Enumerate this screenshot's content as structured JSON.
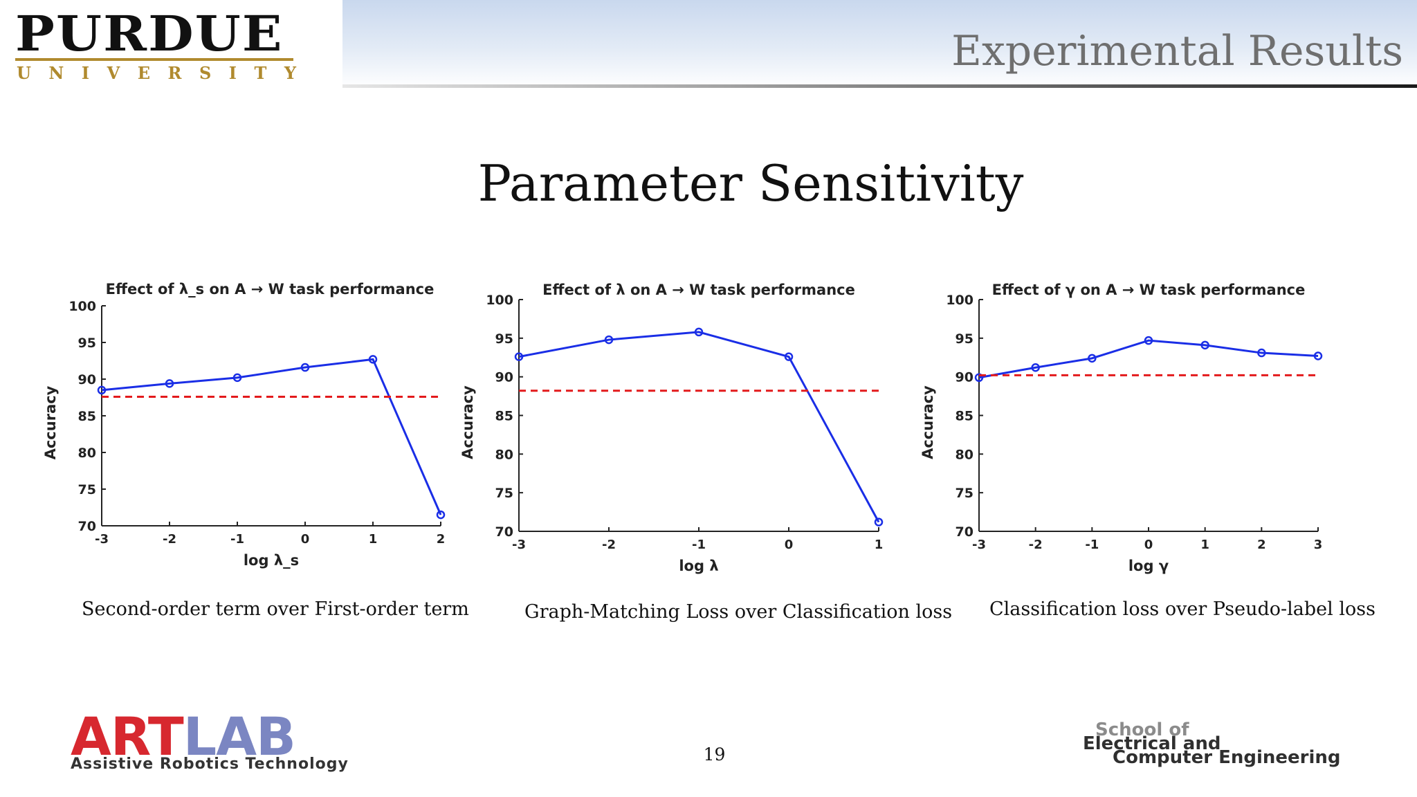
{
  "header": {
    "logo_name": "PURDUE",
    "logo_sub": "UNIVERSITY",
    "section_title": "Experimental Results"
  },
  "slide_title": "Parameter Sensitivity",
  "chart_data": [
    {
      "type": "line",
      "title": "Effect of λ_s on A → W task performance",
      "xlabel": "log λ_s",
      "ylabel": "Accuracy",
      "x": [
        -3,
        -2,
        -1,
        0,
        1,
        2
      ],
      "series": [
        {
          "values": [
            88.5,
            89.4,
            90.2,
            91.6,
            92.7,
            71.5
          ],
          "color": "#1a2ee6",
          "style": "solid",
          "marker": "circle"
        },
        {
          "values": [
            87.6,
            87.6,
            87.6,
            87.6,
            87.6,
            87.6
          ],
          "color": "#e31a1c",
          "style": "dashed"
        }
      ],
      "xlim": [
        -3,
        2
      ],
      "ylim": [
        70,
        100
      ],
      "xticks": [
        -3,
        -2,
        -1,
        0,
        1,
        2
      ],
      "yticks": [
        70,
        75,
        80,
        85,
        90,
        95,
        100
      ],
      "grid": false
    },
    {
      "type": "line",
      "title": "Effect of λ on A → W task performance",
      "xlabel": "log λ",
      "ylabel": "Accuracy",
      "x": [
        -3,
        -2,
        -1,
        0,
        1
      ],
      "series": [
        {
          "values": [
            92.6,
            94.8,
            95.8,
            92.6,
            71.2
          ],
          "color": "#1a2ee6",
          "style": "solid",
          "marker": "circle"
        },
        {
          "values": [
            88.2,
            88.2,
            88.2,
            88.2,
            88.2
          ],
          "color": "#e31a1c",
          "style": "dashed"
        }
      ],
      "xlim": [
        -3,
        1
      ],
      "ylim": [
        70,
        100
      ],
      "xticks": [
        -3,
        -2,
        -1,
        0,
        1
      ],
      "yticks": [
        70,
        75,
        80,
        85,
        90,
        95,
        100
      ],
      "grid": false
    },
    {
      "type": "line",
      "title": "Effect of γ on A → W task performance",
      "xlabel": "log γ",
      "ylabel": "Accuracy",
      "x": [
        -3,
        -2,
        -1,
        0,
        1,
        2,
        3
      ],
      "series": [
        {
          "values": [
            89.9,
            91.2,
            92.4,
            94.7,
            94.1,
            93.1,
            92.7
          ],
          "color": "#1a2ee6",
          "style": "solid",
          "marker": "circle"
        },
        {
          "values": [
            90.2,
            90.2,
            90.2,
            90.2,
            90.2,
            90.2,
            90.2
          ],
          "color": "#e31a1c",
          "style": "dashed"
        }
      ],
      "xlim": [
        -3,
        3
      ],
      "ylim": [
        70,
        100
      ],
      "xticks": [
        -3,
        -2,
        -1,
        0,
        1,
        2,
        3
      ],
      "yticks": [
        70,
        75,
        80,
        85,
        90,
        95,
        100
      ],
      "grid": false
    }
  ],
  "captions": [
    "Second-order term over First-order term",
    "Graph-Matching Loss over Classification loss",
    "Classification loss over Pseudo-label loss"
  ],
  "footer": {
    "artlab_art": "ART",
    "artlab_lab": "LAB",
    "artlab_sub": "Assistive Robotics Technology",
    "page_number": "19",
    "school_line1": "School of",
    "school_line2": "Electrical and",
    "school_line3": "Computer Engineering"
  }
}
